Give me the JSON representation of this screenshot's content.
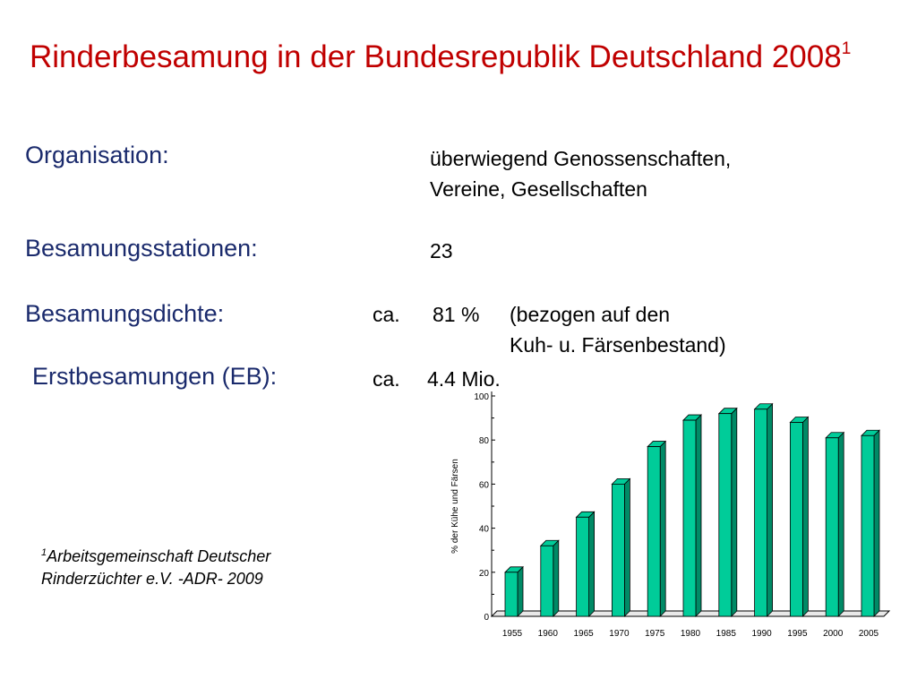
{
  "slide": {
    "title": "Rinderbesamung in der Bundesrepublik Deutschland 2008",
    "title_superscript": "1"
  },
  "items": [
    {
      "label": "Organisation:",
      "value_line1": "überwiegend Genossenschaften,",
      "value_line2": "Vereine, Gesellschaften"
    },
    {
      "label": "Besamungsstationen:",
      "value": "23"
    },
    {
      "label": "Besamungsdichte:",
      "prefix": "ca.",
      "value": "81 %",
      "note_line1": "(bezogen auf den",
      "note_line2": "Kuh- u. Färsenbestand)"
    },
    {
      "label": "Erstbesamungen (EB):",
      "prefix": "ca.",
      "value": "4.4 Mio."
    }
  ],
  "footnote": {
    "superscript": "1",
    "line1": "Arbeitsgemeinschaft Deutscher",
    "line2": "Rinderzüchter  e.V.  -ADR-  2009"
  },
  "colors": {
    "title": "#c00000",
    "labels": "#1a2a6c",
    "bar_fill": "#00cc99",
    "bar_side": "#008a66"
  },
  "chart_data": {
    "type": "bar",
    "categories": [
      "1955",
      "1960",
      "1965",
      "1970",
      "1975",
      "1980",
      "1985",
      "1990",
      "1995",
      "2000",
      "2005"
    ],
    "values": [
      20,
      32,
      45,
      60,
      77,
      89,
      92,
      94,
      88,
      81,
      82
    ],
    "ylabel": "% der Kühe und Färsen",
    "ylim": [
      0,
      100
    ],
    "yticks": [
      "0",
      "20",
      "40",
      "60",
      "80",
      "100"
    ],
    "grid": false
  }
}
